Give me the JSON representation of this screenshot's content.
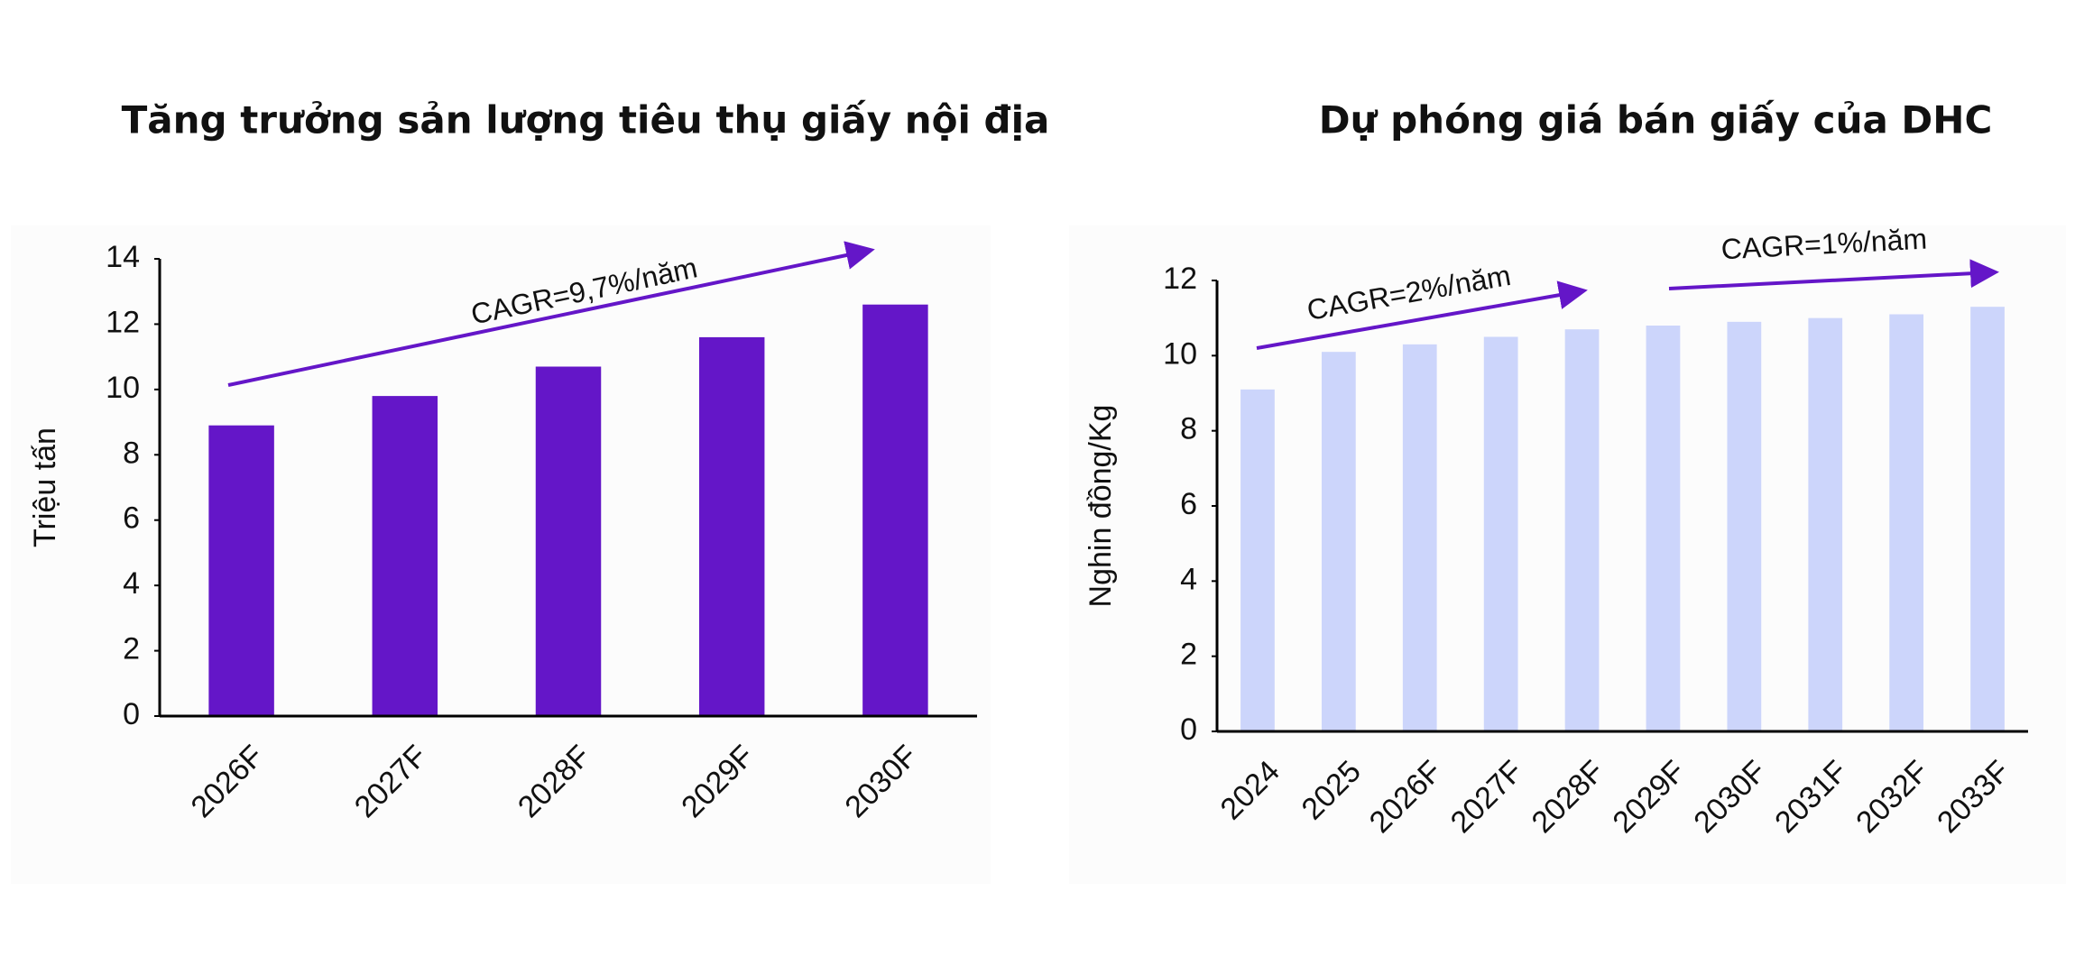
{
  "chart_data": [
    {
      "type": "bar",
      "title": "Tăng trưởng sản lượng tiêu thụ giấy nội địa",
      "y_label": "Triệu tấn",
      "categories": [
        "2026F",
        "2027F",
        "2028F",
        "2029F",
        "2030F"
      ],
      "values": [
        8.9,
        9.8,
        10.7,
        11.6,
        12.6
      ],
      "color": "#6416c8",
      "ylim": [
        0,
        14
      ],
      "yticks": [
        0,
        2,
        4,
        6,
        8,
        10,
        12,
        14
      ],
      "annotations": [
        "CAGR=9,7%/năm"
      ]
    },
    {
      "type": "bar",
      "title": "Dự phóng giá bán giấy của DHC",
      "y_label": "Nghin đồng/Kg",
      "categories": [
        "2024",
        "2025",
        "2026F",
        "2027F",
        "2028F",
        "2029F",
        "2030F",
        "2031F",
        "2032F",
        "2033F"
      ],
      "values": [
        9.1,
        10.1,
        10.3,
        10.5,
        10.7,
        10.8,
        10.9,
        11.0,
        11.1,
        11.3
      ],
      "color": "#ccd5fb",
      "ylim": [
        0,
        12
      ],
      "yticks": [
        0,
        2,
        4,
        6,
        8,
        10,
        12
      ],
      "annotations": [
        "CAGR=2%/năm",
        "CAGR=1%/năm"
      ]
    }
  ]
}
